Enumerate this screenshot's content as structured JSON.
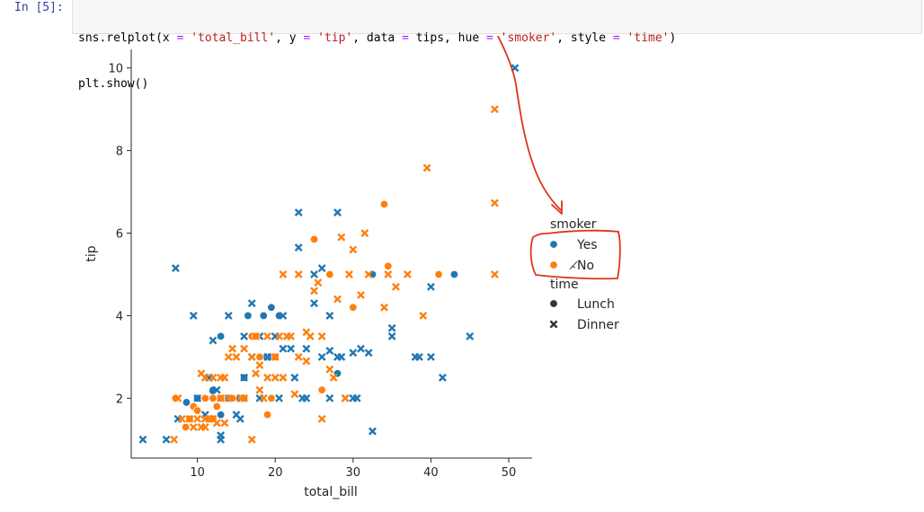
{
  "cell": {
    "prompt": "In [5]:",
    "code_line_1": {
      "fn": "sns.relplot(x ",
      "eq1": "=",
      "s1": " 'total_bill'",
      "c1": ", y ",
      "eq2": "=",
      "s2": " 'tip'",
      "c2": ", data ",
      "eq3": "=",
      "c3": " tips, hue ",
      "eq4": "=",
      "s3": " 'smoker'",
      "c4": ", style ",
      "eq5": "=",
      "s4": " 'time'",
      "c5": ")"
    },
    "code_line_2": "plt.show()"
  },
  "colors": {
    "yes": "#1f77b4",
    "no": "#ff7f0e",
    "annotation": "#e0321c"
  },
  "chart_data": {
    "type": "scatter",
    "title": "",
    "xlabel": "total_bill",
    "ylabel": "tip",
    "xlim": [
      1.5,
      53
    ],
    "ylim": [
      0.55,
      10.45
    ],
    "xticks": [
      10,
      20,
      30,
      40,
      50
    ],
    "yticks": [
      2,
      4,
      6,
      8,
      10
    ],
    "grid": false,
    "legend": {
      "placement": "right",
      "hue_title": "smoker",
      "hue_entries": [
        "Yes",
        "No"
      ],
      "style_title": "time",
      "style_entries": [
        "Lunch",
        "Dinner"
      ]
    },
    "series": [
      {
        "smoker": "Yes",
        "time": "Lunch",
        "marker": "circle",
        "points": [
          [
            8.6,
            1.9
          ],
          [
            10,
            2
          ],
          [
            11,
            2
          ],
          [
            12,
            2.2
          ],
          [
            13,
            1.6
          ],
          [
            13,
            2
          ],
          [
            13,
            3.5
          ],
          [
            14,
            2
          ],
          [
            16,
            2.5
          ],
          [
            16.5,
            4
          ],
          [
            18.5,
            4
          ],
          [
            19.5,
            4.2
          ],
          [
            20.5,
            4
          ],
          [
            28,
            2.6
          ],
          [
            32.5,
            5
          ],
          [
            43,
            5
          ]
        ]
      },
      {
        "smoker": "Yes",
        "time": "Dinner",
        "marker": "x",
        "points": [
          [
            3,
            1
          ],
          [
            6,
            1
          ],
          [
            7.5,
            1.5
          ],
          [
            7.2,
            5.15
          ],
          [
            9.5,
            4
          ],
          [
            10,
            2
          ],
          [
            11,
            1.6
          ],
          [
            11.5,
            2.5
          ],
          [
            12,
            2.1
          ],
          [
            12,
            3.4
          ],
          [
            12.5,
            2.2
          ],
          [
            13,
            1
          ],
          [
            13,
            1.1
          ],
          [
            14,
            2
          ],
          [
            14,
            4
          ],
          [
            15,
            1.6
          ],
          [
            15,
            2
          ],
          [
            15.5,
            1.5
          ],
          [
            16,
            3.5
          ],
          [
            16,
            2.5
          ],
          [
            17,
            4.3
          ],
          [
            17,
            3
          ],
          [
            18,
            2
          ],
          [
            18,
            3.5
          ],
          [
            18.5,
            3
          ],
          [
            19,
            3
          ],
          [
            19.5,
            3
          ],
          [
            20,
            3.5
          ],
          [
            20.5,
            2
          ],
          [
            21,
            4
          ],
          [
            21,
            3.2
          ],
          [
            22,
            3.2
          ],
          [
            22.5,
            2.5
          ],
          [
            23,
            6.5
          ],
          [
            23,
            5.65
          ],
          [
            23.5,
            2
          ],
          [
            24,
            2
          ],
          [
            24,
            3.2
          ],
          [
            25,
            4.3
          ],
          [
            25,
            5
          ],
          [
            26,
            5.15
          ],
          [
            26,
            3
          ],
          [
            27,
            3.15
          ],
          [
            27,
            2
          ],
          [
            27,
            4
          ],
          [
            28,
            3
          ],
          [
            28,
            6.5
          ],
          [
            28.5,
            3
          ],
          [
            29,
            2
          ],
          [
            30,
            2
          ],
          [
            30,
            3.1
          ],
          [
            30.5,
            2
          ],
          [
            31,
            3.2
          ],
          [
            32,
            3.1
          ],
          [
            32.5,
            1.2
          ],
          [
            35,
            3.5
          ],
          [
            35,
            3.7
          ],
          [
            38,
            3
          ],
          [
            38.5,
            3
          ],
          [
            40,
            3
          ],
          [
            40,
            4.7
          ],
          [
            41.5,
            2.5
          ],
          [
            45,
            3.5
          ],
          [
            50.8,
            10
          ]
        ]
      },
      {
        "smoker": "No",
        "time": "Lunch",
        "marker": "circle",
        "points": [
          [
            7.2,
            2
          ],
          [
            8.5,
            1.3
          ],
          [
            9,
            1.5
          ],
          [
            9.5,
            1.8
          ],
          [
            10,
            1.7
          ],
          [
            11,
            2
          ],
          [
            11.5,
            1.5
          ],
          [
            12,
            1.5
          ],
          [
            12,
            2
          ],
          [
            12.5,
            1.8
          ],
          [
            13,
            2
          ],
          [
            14.5,
            2
          ],
          [
            16,
            2
          ],
          [
            17,
            3.5
          ],
          [
            17.5,
            3.5
          ],
          [
            18,
            3
          ],
          [
            19,
            1.6
          ],
          [
            19.5,
            2
          ],
          [
            20,
            3
          ],
          [
            25,
            5.85
          ],
          [
            26,
            2.2
          ],
          [
            27,
            5
          ],
          [
            30,
            4.2
          ],
          [
            34,
            6.7
          ],
          [
            34.5,
            5.2
          ],
          [
            41,
            5
          ]
        ]
      },
      {
        "smoker": "No",
        "time": "Dinner",
        "marker": "x",
        "points": [
          [
            7,
            1
          ],
          [
            7.5,
            2
          ],
          [
            8,
            1.5
          ],
          [
            9,
            1.5
          ],
          [
            9.5,
            1.3
          ],
          [
            10,
            1.5
          ],
          [
            10.5,
            1.3
          ],
          [
            10.5,
            2.6
          ],
          [
            11,
            1.3
          ],
          [
            11,
            1.5
          ],
          [
            11,
            2.5
          ],
          [
            11.5,
            1.5
          ],
          [
            12,
            1.5
          ],
          [
            12,
            2.5
          ],
          [
            12.5,
            1.4
          ],
          [
            13,
            2
          ],
          [
            13,
            2.5
          ],
          [
            13.5,
            1.4
          ],
          [
            13.5,
            2.5
          ],
          [
            14,
            2
          ],
          [
            14,
            3
          ],
          [
            14.5,
            3.2
          ],
          [
            15,
            3
          ],
          [
            15.5,
            2
          ],
          [
            16,
            2
          ],
          [
            16,
            3.2
          ],
          [
            17,
            1
          ],
          [
            17,
            3
          ],
          [
            17.5,
            2.6
          ],
          [
            17.5,
            3.5
          ],
          [
            18,
            2.2
          ],
          [
            18,
            2.8
          ],
          [
            18.5,
            2
          ],
          [
            19,
            2.5
          ],
          [
            19,
            3.5
          ],
          [
            20,
            2.5
          ],
          [
            20,
            3
          ],
          [
            20.5,
            3.5
          ],
          [
            21,
            2.5
          ],
          [
            21,
            5
          ],
          [
            21.5,
            3.5
          ],
          [
            22,
            3.5
          ],
          [
            22.5,
            2.1
          ],
          [
            23,
            3
          ],
          [
            23,
            5
          ],
          [
            24,
            3.6
          ],
          [
            24,
            2.9
          ],
          [
            24.5,
            3.5
          ],
          [
            25,
            4.6
          ],
          [
            25.5,
            4.8
          ],
          [
            26,
            1.5
          ],
          [
            26,
            3.5
          ],
          [
            27,
            2.7
          ],
          [
            27.5,
            2.5
          ],
          [
            28,
            4.4
          ],
          [
            28.5,
            5.9
          ],
          [
            29,
            2
          ],
          [
            29.5,
            5
          ],
          [
            30,
            5.6
          ],
          [
            31,
            4.5
          ],
          [
            31.5,
            6
          ],
          [
            32,
            5
          ],
          [
            34,
            4.2
          ],
          [
            34.5,
            5
          ],
          [
            35.5,
            4.7
          ],
          [
            37,
            5
          ],
          [
            39,
            4
          ],
          [
            39.5,
            7.58
          ],
          [
            48.2,
            5
          ],
          [
            48.2,
            6.73
          ],
          [
            48.2,
            9
          ]
        ]
      }
    ]
  }
}
